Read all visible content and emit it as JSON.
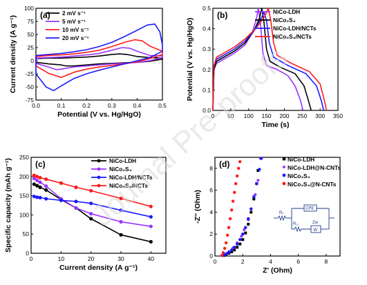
{
  "watermark": "Journal Pre-proofs",
  "colors": {
    "black": "#000000",
    "purple": "#9933ff",
    "blue": "#1a1aff",
    "red": "#ff1a1a"
  },
  "chart_data": [
    {
      "panel": "(a)",
      "type": "line",
      "xlabel": "Potential (V vs. Hg/HgO)",
      "ylabel": "Current density (A g⁻¹)",
      "xlim": [
        0.0,
        0.5
      ],
      "ylim": [
        -75,
        100
      ],
      "xticks": [
        "0.0",
        "0.1",
        "0.2",
        "0.3",
        "0.4",
        "0.5"
      ],
      "yticks": [
        "-75",
        "-50",
        "-25",
        "0",
        "25",
        "50",
        "75",
        "100"
      ],
      "legend": {
        "position": "top-left",
        "entries": [
          "2 mV s⁻¹",
          "5 mV s⁻¹",
          "10 mV s⁻¹",
          "20 mV s⁻¹"
        ]
      },
      "series": [
        {
          "name": "2 mV s⁻¹",
          "color": "#000000",
          "x": [
            0,
            0.05,
            0.1,
            0.15,
            0.2,
            0.25,
            0.3,
            0.33,
            0.36,
            0.4,
            0.45,
            0.5,
            0.5,
            0.45,
            0.4,
            0.35,
            0.3,
            0.25,
            0.2,
            0.15,
            0.12,
            0.1,
            0.05,
            0
          ],
          "y": [
            4,
            5,
            5,
            6,
            7,
            9,
            12,
            13,
            12,
            8,
            6,
            5,
            3,
            -1,
            -3,
            -4,
            -5,
            -6,
            -8,
            -10,
            -10,
            -8,
            -6,
            -3
          ]
        },
        {
          "name": "5 mV s⁻¹",
          "color": "#9933ff",
          "x": [
            0,
            0.05,
            0.1,
            0.15,
            0.2,
            0.25,
            0.3,
            0.34,
            0.37,
            0.4,
            0.45,
            0.5,
            0.5,
            0.45,
            0.4,
            0.35,
            0.3,
            0.25,
            0.2,
            0.15,
            0.1,
            0.08,
            0.05,
            0
          ],
          "y": [
            5,
            6,
            7,
            9,
            11,
            14,
            20,
            25,
            24,
            18,
            10,
            9,
            6,
            0,
            -3,
            -5,
            -6,
            -8,
            -10,
            -12,
            -16,
            -17,
            -12,
            -5
          ]
        },
        {
          "name": "10 mV s⁻¹",
          "color": "#ff1a1a",
          "x": [
            0,
            0.05,
            0.1,
            0.15,
            0.2,
            0.25,
            0.3,
            0.35,
            0.39,
            0.42,
            0.45,
            0.5,
            0.5,
            0.45,
            0.4,
            0.35,
            0.3,
            0.25,
            0.2,
            0.15,
            0.1,
            0.05,
            0
          ],
          "y": [
            8,
            10,
            11,
            13,
            16,
            20,
            27,
            35,
            40,
            38,
            28,
            18,
            12,
            4,
            -2,
            -6,
            -9,
            -12,
            -16,
            -22,
            -32,
            -24,
            -10
          ]
        },
        {
          "name": "20 mV s⁻¹",
          "color": "#1a1aff",
          "x": [
            0,
            0.05,
            0.1,
            0.15,
            0.2,
            0.25,
            0.3,
            0.35,
            0.4,
            0.44,
            0.47,
            0.49,
            0.5,
            0.5,
            0.45,
            0.4,
            0.35,
            0.3,
            0.25,
            0.2,
            0.15,
            0.1,
            0.07,
            0.04,
            0
          ],
          "y": [
            10,
            12,
            14,
            17,
            21,
            27,
            35,
            46,
            58,
            68,
            70,
            55,
            30,
            18,
            6,
            0,
            -6,
            -12,
            -18,
            -25,
            -34,
            -48,
            -57,
            -50,
            -25
          ]
        }
      ]
    },
    {
      "panel": "(b)",
      "type": "line",
      "xlabel": "Time (s)",
      "ylabel": "Potential (V vs. Hg/HgO)",
      "xlim": [
        0,
        350
      ],
      "ylim": [
        0.0,
        0.5
      ],
      "xticks": [
        "0",
        "50",
        "100",
        "150",
        "200",
        "250",
        "300",
        "350"
      ],
      "yticks": [
        "0.0",
        "0.1",
        "0.2",
        "0.3",
        "0.4",
        "0.5"
      ],
      "legend": {
        "position": "top-right",
        "entries": [
          "NiCo-LDH",
          "NiCo₂S₄",
          "NiCo-LDH/NCTs",
          "NiCo₂S₄/NCTs"
        ]
      },
      "series": [
        {
          "name": "NiCo-LDH",
          "color": "#9933ff",
          "x": [
            0,
            3,
            10,
            30,
            60,
            90,
            110,
            122,
            127,
            133,
            140,
            150,
            180,
            210,
            230,
            245,
            252
          ],
          "y": [
            0,
            0.2,
            0.23,
            0.25,
            0.28,
            0.32,
            0.38,
            0.45,
            0.5,
            0.43,
            0.28,
            0.22,
            0.2,
            0.17,
            0.12,
            0.05,
            0
          ]
        },
        {
          "name": "NiCo₂S₄",
          "color": "#000000",
          "x": [
            0,
            3,
            10,
            30,
            60,
            90,
            115,
            130,
            137,
            143,
            150,
            160,
            190,
            230,
            255,
            267,
            275
          ],
          "y": [
            0,
            0.2,
            0.24,
            0.26,
            0.29,
            0.33,
            0.39,
            0.45,
            0.5,
            0.43,
            0.3,
            0.24,
            0.21,
            0.18,
            0.12,
            0.05,
            0
          ]
        },
        {
          "name": "NiCo-LDH/NCTs",
          "color": "#1a1aff",
          "x": [
            0,
            3,
            10,
            30,
            60,
            90,
            115,
            135,
            143,
            150,
            158,
            170,
            210,
            260,
            290,
            303,
            310
          ],
          "y": [
            0,
            0.22,
            0.25,
            0.27,
            0.3,
            0.34,
            0.39,
            0.45,
            0.48,
            0.44,
            0.33,
            0.26,
            0.22,
            0.18,
            0.12,
            0.05,
            0
          ]
        },
        {
          "name": "NiCo₂S₄/NCTs",
          "color": "#ff1a1a",
          "x": [
            0,
            3,
            10,
            30,
            60,
            90,
            120,
            145,
            155,
            162,
            170,
            180,
            220,
            270,
            300,
            312,
            318
          ],
          "y": [
            0,
            0.22,
            0.26,
            0.28,
            0.31,
            0.35,
            0.4,
            0.46,
            0.5,
            0.44,
            0.33,
            0.27,
            0.23,
            0.19,
            0.13,
            0.05,
            0
          ]
        }
      ]
    },
    {
      "panel": "(c)",
      "type": "line",
      "xlabel": "Current density (A g⁻¹)",
      "ylabel": "Specific capacity (mAh g⁻¹)",
      "xlim": [
        0,
        45
      ],
      "ylim": [
        0,
        250
      ],
      "xticks": [
        "0",
        "10",
        "20",
        "30",
        "40"
      ],
      "yticks": [
        "0",
        "50",
        "100",
        "150",
        "200",
        "250"
      ],
      "legend": {
        "position": "top-right",
        "entries": [
          "NiCo-LDH",
          "NiCo₂S₄",
          "NiCo-LDH/NCTs",
          "NiCo₂S₄/NCTs"
        ]
      },
      "series": [
        {
          "name": "NiCo-LDH",
          "color": "#000000",
          "x": [
            1,
            2,
            3,
            5,
            10,
            15,
            20,
            30,
            40
          ],
          "y": [
            180,
            176,
            172,
            165,
            140,
            118,
            90,
            48,
            30
          ]
        },
        {
          "name": "NiCo₂S₄",
          "color": "#9933ff",
          "x": [
            1,
            2,
            3,
            5,
            10,
            15,
            20,
            30,
            40
          ],
          "y": [
            195,
            190,
            185,
            175,
            142,
            118,
            103,
            82,
            70
          ]
        },
        {
          "name": "NiCo-LDH/NCTs",
          "color": "#1a1aff",
          "x": [
            1,
            2,
            3,
            5,
            10,
            15,
            20,
            30,
            40
          ],
          "y": [
            148,
            146,
            145,
            142,
            138,
            135,
            130,
            112,
            95
          ]
        },
        {
          "name": "NiCo₂S₄/NCTs",
          "color": "#ff1a1a",
          "x": [
            1,
            2,
            3,
            5,
            10,
            15,
            20,
            30,
            40
          ],
          "y": [
            203,
            200,
            197,
            193,
            183,
            172,
            163,
            143,
            122
          ]
        }
      ]
    },
    {
      "panel": "(d)",
      "type": "scatter",
      "xlabel": "Z' (Ohm)",
      "ylabel": "-Z'' (Ohm)",
      "xlim": [
        0,
        9
      ],
      "ylim": [
        0,
        9
      ],
      "xticks": [
        "0",
        "2",
        "4",
        "6",
        "8"
      ],
      "yticks": [
        "0",
        "2",
        "4",
        "6",
        "8"
      ],
      "legend": {
        "position": "top-right",
        "entries": [
          "NiCo-LDH",
          "NiCo-LDH@N-CNTs",
          "NiCo₂S₄",
          "NiCo₂S₄@N-CNTs"
        ]
      },
      "inset": {
        "labels": [
          "Rₛ",
          "CPE",
          "R꜀ₜ",
          "Zw",
          "W"
        ]
      },
      "series": [
        {
          "name": "NiCo-LDH",
          "color": "#000000",
          "marker": "square",
          "x": [
            0.65,
            0.8,
            1.0,
            1.2,
            1.4,
            1.6,
            1.8,
            2.0,
            2.2,
            2.4,
            2.6,
            2.8,
            3.0,
            3.1
          ],
          "y": [
            0.05,
            0.12,
            0.25,
            0.38,
            0.55,
            0.8,
            1.1,
            1.5,
            2.1,
            2.9,
            4.0,
            5.2,
            6.6,
            7.8
          ]
        },
        {
          "name": "NiCo-LDH@N-CNTs",
          "color": "#9933ff",
          "marker": "diamond",
          "x": [
            0.6,
            0.8,
            1.0,
            1.3,
            1.6,
            1.9,
            2.1,
            2.4,
            2.6,
            2.9,
            3.1,
            3.35
          ],
          "y": [
            0.05,
            0.2,
            0.4,
            0.75,
            1.2,
            1.8,
            2.4,
            3.3,
            4.3,
            5.6,
            6.9,
            8.9
          ]
        },
        {
          "name": "NiCo₂S₄",
          "color": "#1a1aff",
          "marker": "circle",
          "x": [
            0.55,
            0.7,
            0.85,
            1.0,
            1.2,
            1.4,
            1.6,
            1.8,
            2.0,
            2.2,
            2.4,
            2.6,
            2.8,
            3.0,
            3.2,
            3.3
          ],
          "y": [
            0.05,
            0.12,
            0.22,
            0.35,
            0.55,
            0.8,
            1.1,
            1.5,
            2.0,
            2.6,
            3.4,
            4.3,
            5.4,
            6.6,
            7.9,
            8.9
          ]
        },
        {
          "name": "NiCo₂S₄@N-CNTs",
          "color": "#ff1a1a",
          "marker": "circle",
          "x": [
            0.5,
            0.6,
            0.7,
            0.8,
            0.9,
            1.0,
            1.1,
            1.2,
            1.3,
            1.4,
            1.5,
            1.6,
            1.7,
            1.8
          ],
          "y": [
            0.05,
            0.3,
            0.7,
            1.2,
            1.9,
            2.6,
            3.4,
            4.2,
            5.0,
            5.8,
            6.6,
            7.3,
            8.0,
            8.6
          ]
        }
      ]
    }
  ]
}
